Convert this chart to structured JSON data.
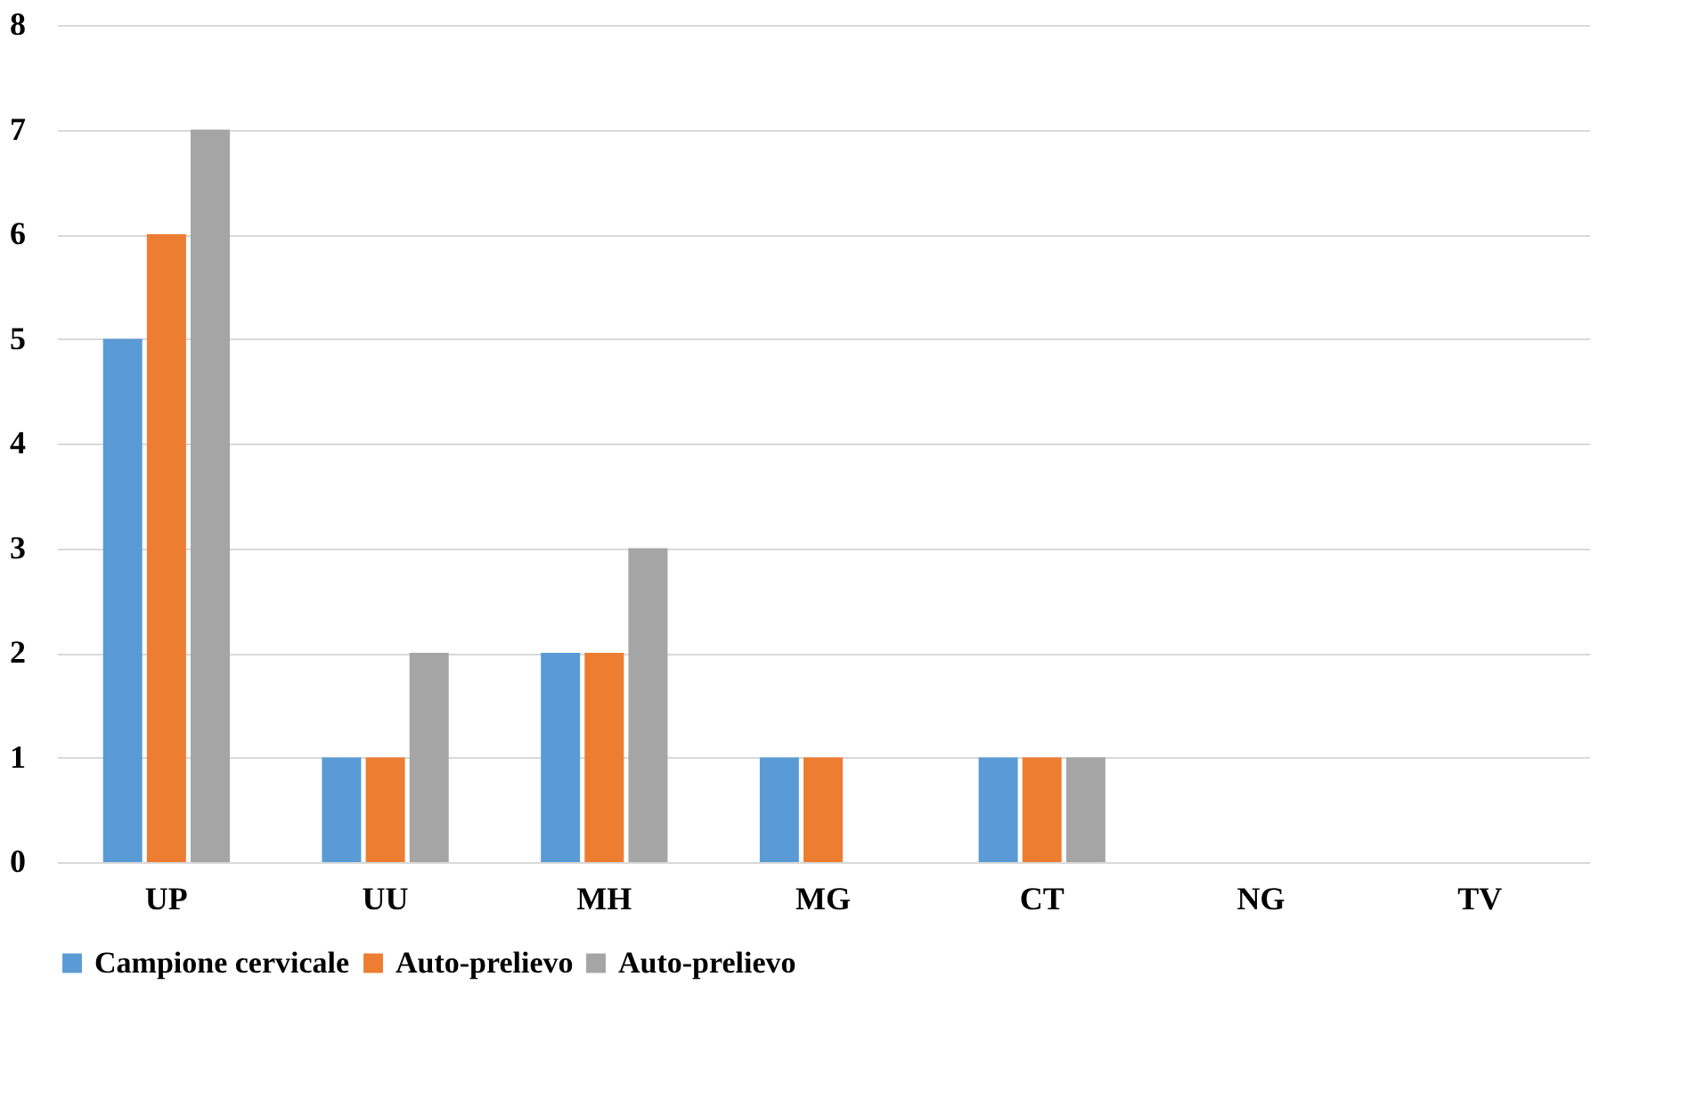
{
  "chart_data": {
    "type": "bar",
    "categories": [
      "UP",
      "UU",
      "MH",
      "MG",
      "CT",
      "NG",
      "TV"
    ],
    "series": [
      {
        "name": "Campione cervicale",
        "color": "#5b9bd5",
        "values": [
          5,
          1,
          2,
          1,
          1,
          0,
          0
        ]
      },
      {
        "name": "Auto-prelievo",
        "color": "#ed7d31",
        "values": [
          6,
          1,
          2,
          1,
          1,
          0,
          0
        ]
      },
      {
        "name": "Auto-prelievo",
        "color": "#a5a5a5",
        "values": [
          7,
          2,
          3,
          0,
          1,
          0,
          0
        ]
      }
    ],
    "ylim": [
      0,
      8
    ],
    "yticks": [
      0,
      1,
      2,
      3,
      4,
      5,
      6,
      7,
      8
    ],
    "grid": "y",
    "legend": "bottom"
  }
}
